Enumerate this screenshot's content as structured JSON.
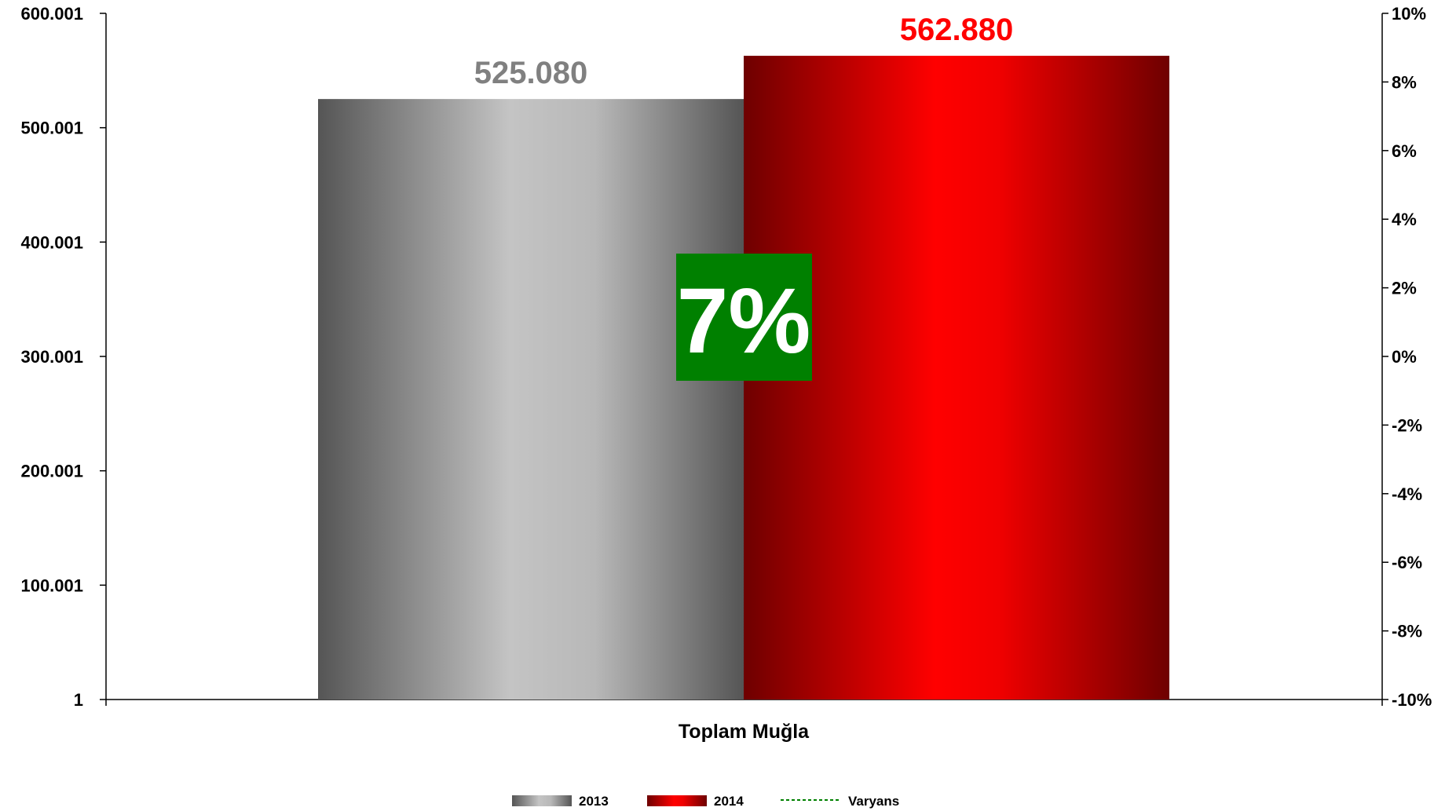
{
  "chart_data": {
    "type": "bar",
    "categories": [
      "Toplam Muğla"
    ],
    "series": [
      {
        "name": "2013",
        "values": [
          525080
        ],
        "label": "525.080"
      },
      {
        "name": "2014",
        "values": [
          562880
        ],
        "label": "562.880"
      }
    ],
    "variance": {
      "name": "Varyans",
      "value": 7,
      "label": "7%"
    },
    "y_left": {
      "ylim": [
        1,
        600001
      ],
      "ticks": [
        1,
        100001,
        200001,
        300001,
        400001,
        500001,
        600001
      ],
      "tick_labels": [
        "1",
        "100.001",
        "200.001",
        "300.001",
        "400.001",
        "500.001",
        "600.001"
      ]
    },
    "y_right": {
      "ylim": [
        -10,
        10
      ],
      "ticks": [
        -10,
        -8,
        -6,
        -4,
        -2,
        0,
        2,
        4,
        6,
        8,
        10
      ],
      "tick_labels": [
        "-10%",
        "-8%",
        "-6%",
        "-4%",
        "-2%",
        "0%",
        "2%",
        "4%",
        "6%",
        "8%",
        "10%"
      ]
    },
    "grid": false,
    "legend_position": "bottom",
    "colors": {
      "series_2013_label": "#808080",
      "series_2014_label": "#ff0000",
      "variance_box": "#008000",
      "variance_line": "#008000"
    }
  }
}
